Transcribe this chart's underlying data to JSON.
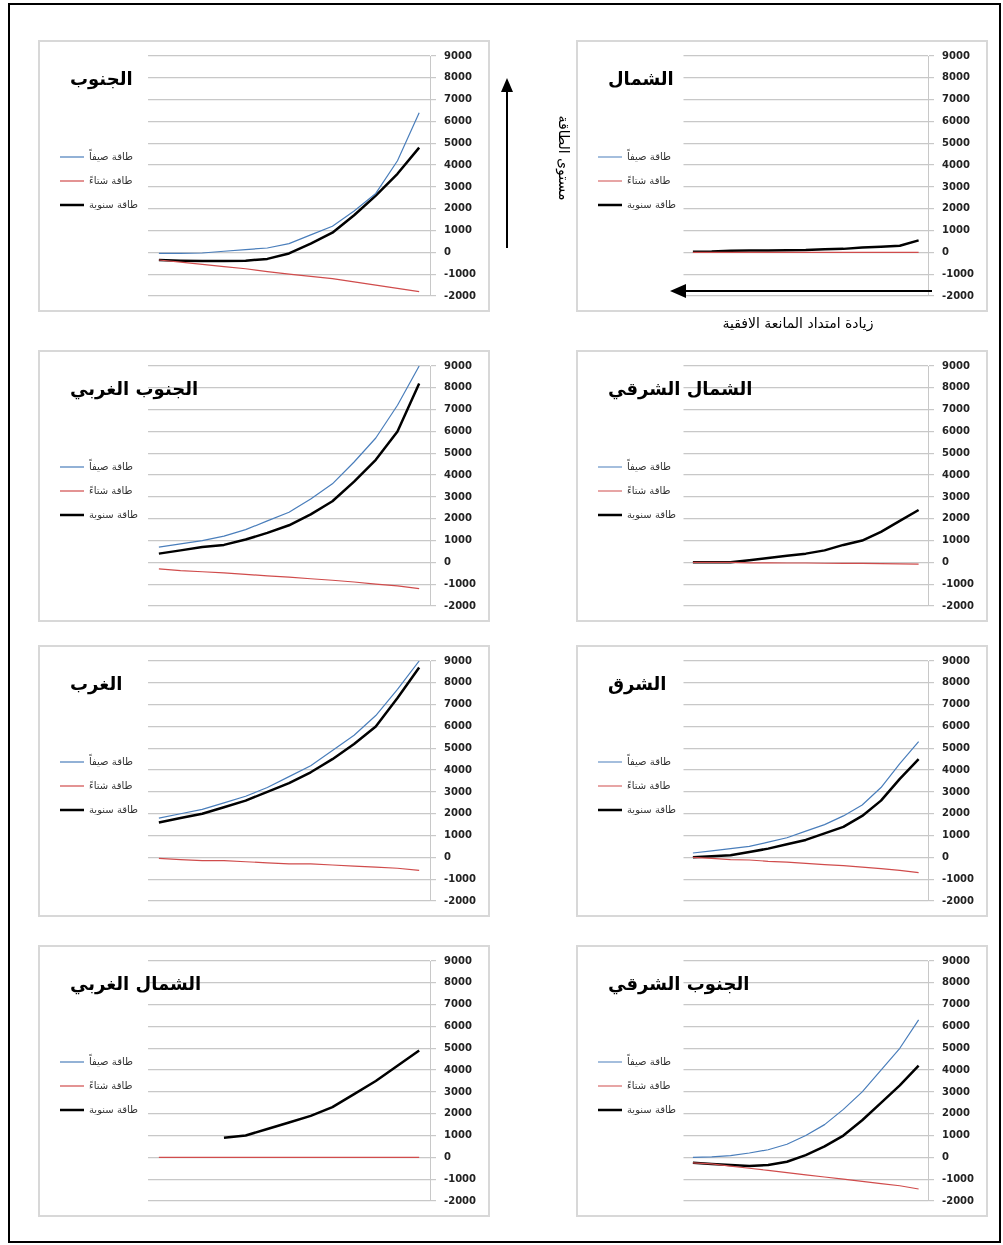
{
  "chart_data": [
    {
      "type": "line",
      "title": "الجنوب",
      "ylabel": "مستوى الطاقة",
      "legend": "left",
      "grid": "y",
      "marker": "none",
      "tick_labels": "y",
      "categories": [
        null,
        null,
        null,
        null,
        null,
        null,
        null,
        null,
        null,
        null,
        null,
        null,
        null
      ],
      "ylim": [
        -2000,
        9000
      ],
      "yticks": [
        -2000,
        -1000,
        0,
        1000,
        2000,
        3000,
        4000,
        5000,
        6000,
        7000,
        8000,
        9000
      ],
      "series": [
        {
          "name": "طاقة صيفاً",
          "color": "#4a7ebb",
          "values": [
            -50,
            -50,
            -30,
            50,
            130,
            200,
            400,
            800,
            1200,
            1900,
            2700,
            4200,
            6400
          ]
        },
        {
          "name": "طاقة شتاءً",
          "color": "#d04c4c",
          "values": [
            -350,
            -450,
            -550,
            -650,
            -750,
            -880,
            -1000,
            -1100,
            -1200,
            -1350,
            -1500,
            -1650,
            -1800
          ]
        },
        {
          "name": "طاقة سنوية",
          "color": "#000000",
          "values": [
            -350,
            -380,
            -400,
            -400,
            -380,
            -300,
            -50,
            400,
            900,
            1700,
            2600,
            3600,
            4800
          ]
        }
      ]
    },
    {
      "type": "line",
      "title": "الشمال",
      "xlabel": "زيادة امتداد المانعة الافقية",
      "legend": "left",
      "grid": "y",
      "marker": "none",
      "tick_labels": "y",
      "categories": [
        null,
        null,
        null,
        null,
        null,
        null,
        null,
        null,
        null,
        null,
        null,
        null,
        null
      ],
      "ylim": [
        -2000,
        9000
      ],
      "yticks": [
        -2000,
        -1000,
        0,
        1000,
        2000,
        3000,
        4000,
        5000,
        6000,
        7000,
        8000,
        9000
      ],
      "series": [
        {
          "name": "طاقة صيفاً",
          "color": "#4a7ebb",
          "values": [
            null,
            null,
            null,
            null,
            null,
            null,
            null,
            null,
            null,
            null,
            null,
            null,
            null
          ]
        },
        {
          "name": "طاقة شتاءً",
          "color": "#d04c4c",
          "values": [
            0,
            0,
            0,
            0,
            0,
            0,
            0,
            0,
            0,
            0,
            0,
            0,
            0
          ]
        },
        {
          "name": "طاقة سنوية",
          "color": "#000000",
          "values": [
            30,
            40,
            70,
            80,
            90,
            100,
            110,
            140,
            160,
            220,
            260,
            300,
            550
          ]
        }
      ]
    },
    {
      "type": "line",
      "title": "الجنوب الغربي",
      "legend": "left",
      "grid": "y",
      "marker": "none",
      "tick_labels": "y",
      "categories": [
        null,
        null,
        null,
        null,
        null,
        null,
        null,
        null,
        null,
        null,
        null,
        null,
        null
      ],
      "ylim": [
        -2000,
        9000
      ],
      "yticks": [
        -2000,
        -1000,
        0,
        1000,
        2000,
        3000,
        4000,
        5000,
        6000,
        7000,
        8000,
        9000
      ],
      "series": [
        {
          "name": "طاقة صيفاً",
          "color": "#4a7ebb",
          "values": [
            700,
            850,
            1000,
            1200,
            1500,
            1900,
            2300,
            2900,
            3600,
            4600,
            5700,
            7200,
            9000
          ]
        },
        {
          "name": "طاقة شتاءً",
          "color": "#d04c4c",
          "values": [
            -300,
            -380,
            -430,
            -480,
            -550,
            -620,
            -680,
            -750,
            -820,
            -900,
            -1000,
            -1080,
            -1200
          ]
        },
        {
          "name": "طاقة سنوية",
          "color": "#000000",
          "values": [
            400,
            550,
            700,
            800,
            1050,
            1350,
            1700,
            2200,
            2800,
            3700,
            4700,
            6000,
            8200
          ]
        }
      ]
    },
    {
      "type": "line",
      "title": "الشمال الشرقي",
      "legend": "left",
      "grid": "y",
      "marker": "none",
      "tick_labels": "y",
      "categories": [
        null,
        null,
        null,
        null,
        null,
        null,
        null,
        null,
        null,
        null,
        null,
        null,
        null
      ],
      "ylim": [
        -2000,
        9000
      ],
      "yticks": [
        -2000,
        -1000,
        0,
        1000,
        2000,
        3000,
        4000,
        5000,
        6000,
        7000,
        8000,
        9000
      ],
      "series": [
        {
          "name": "طاقة صيفاً",
          "color": "#4a7ebb",
          "values": [
            null,
            null,
            null,
            null,
            null,
            null,
            null,
            null,
            null,
            null,
            null,
            null,
            null
          ]
        },
        {
          "name": "طاقة شتاءً",
          "color": "#d04c4c",
          "values": [
            0,
            0,
            0,
            -20,
            -20,
            -30,
            -30,
            -40,
            -50,
            -50,
            -60,
            -70,
            -80
          ]
        },
        {
          "name": "طاقة سنوية",
          "color": "#000000",
          "values": [
            0,
            0,
            0,
            100,
            200,
            300,
            400,
            550,
            800,
            1000,
            1400,
            1900,
            2400
          ]
        }
      ]
    },
    {
      "type": "line",
      "title": "الغرب",
      "legend": "left",
      "grid": "y",
      "marker": "none",
      "tick_labels": "y",
      "categories": [
        null,
        null,
        null,
        null,
        null,
        null,
        null,
        null,
        null,
        null,
        null,
        null,
        null
      ],
      "ylim": [
        -2000,
        9000
      ],
      "yticks": [
        -2000,
        -1000,
        0,
        1000,
        2000,
        3000,
        4000,
        5000,
        6000,
        7000,
        8000,
        9000
      ],
      "series": [
        {
          "name": "طاقة صيفاً",
          "color": "#4a7ebb",
          "values": [
            1800,
            2000,
            2200,
            2500,
            2800,
            3200,
            3700,
            4200,
            4900,
            5600,
            6500,
            7700,
            9000
          ]
        },
        {
          "name": "طاقة شتاءً",
          "color": "#d04c4c",
          "values": [
            -50,
            -100,
            -150,
            -150,
            -200,
            -250,
            -300,
            -300,
            -350,
            -400,
            -450,
            -500,
            -600
          ]
        },
        {
          "name": "طاقة سنوية",
          "color": "#000000",
          "values": [
            1600,
            1800,
            2000,
            2300,
            2600,
            3000,
            3400,
            3900,
            4500,
            5200,
            6000,
            7300,
            8700
          ]
        }
      ]
    },
    {
      "type": "line",
      "title": "الشرق",
      "legend": "left",
      "grid": "y",
      "marker": "none",
      "tick_labels": "y",
      "categories": [
        null,
        null,
        null,
        null,
        null,
        null,
        null,
        null,
        null,
        null,
        null,
        null,
        null
      ],
      "ylim": [
        -2000,
        9000
      ],
      "yticks": [
        -2000,
        -1000,
        0,
        1000,
        2000,
        3000,
        4000,
        5000,
        6000,
        7000,
        8000,
        9000
      ],
      "series": [
        {
          "name": "طاقة صيفاً",
          "color": "#4a7ebb",
          "values": [
            200,
            300,
            400,
            500,
            700,
            900,
            1200,
            1500,
            1900,
            2400,
            3200,
            4300,
            5300
          ]
        },
        {
          "name": "طاقة شتاءً",
          "color": "#d04c4c",
          "values": [
            0,
            -50,
            -100,
            -120,
            -180,
            -220,
            -280,
            -330,
            -380,
            -450,
            -520,
            -600,
            -700
          ]
        },
        {
          "name": "طاقة سنوية",
          "color": "#000000",
          "values": [
            0,
            50,
            100,
            250,
            400,
            600,
            800,
            1100,
            1400,
            1900,
            2600,
            3600,
            4500
          ]
        }
      ]
    },
    {
      "type": "line",
      "title": "الشمال الغربي",
      "legend": "left",
      "grid": "y",
      "marker": "none",
      "tick_labels": "y",
      "categories": [
        null,
        null,
        null,
        null,
        null,
        null,
        null,
        null,
        null,
        null,
        null,
        null,
        null
      ],
      "ylim": [
        -2000,
        9000
      ],
      "yticks": [
        -2000,
        -1000,
        0,
        1000,
        2000,
        3000,
        4000,
        5000,
        6000,
        7000,
        8000,
        9000
      ],
      "series": [
        {
          "name": "طاقة صيفاً",
          "color": "#4a7ebb",
          "values": [
            null,
            null,
            null,
            null,
            null,
            null,
            null,
            null,
            null,
            null,
            null,
            null,
            null
          ]
        },
        {
          "name": "طاقة شتاءً",
          "color": "#d04c4c",
          "values": [
            0,
            0,
            0,
            0,
            0,
            0,
            0,
            0,
            0,
            0,
            0,
            0,
            0
          ]
        },
        {
          "name": "طاقة سنوية",
          "color": "#000000",
          "values": [
            null,
            null,
            null,
            900,
            1000,
            1300,
            1600,
            1900,
            2300,
            2900,
            3500,
            4200,
            4900
          ]
        }
      ]
    },
    {
      "type": "line",
      "title": "الجنوب الشرقي",
      "legend": "left",
      "grid": "y",
      "marker": "none",
      "tick_labels": "y",
      "categories": [
        null,
        null,
        null,
        null,
        null,
        null,
        null,
        null,
        null,
        null,
        null,
        null,
        null
      ],
      "ylim": [
        -2000,
        9000
      ],
      "yticks": [
        -2000,
        -1000,
        0,
        1000,
        2000,
        3000,
        4000,
        5000,
        6000,
        7000,
        8000,
        9000
      ],
      "series": [
        {
          "name": "طاقة صيفاً",
          "color": "#4a7ebb",
          "values": [
            0,
            20,
            80,
            200,
            350,
            600,
            1000,
            1500,
            2200,
            3000,
            4000,
            5000,
            6300
          ]
        },
        {
          "name": "طاقة شتاءً",
          "color": "#d04c4c",
          "values": [
            -250,
            -300,
            -400,
            -500,
            -600,
            -700,
            -800,
            -900,
            -1000,
            -1100,
            -1200,
            -1300,
            -1450
          ]
        },
        {
          "name": "طاقة سنوية",
          "color": "#000000",
          "values": [
            -250,
            -300,
            -350,
            -400,
            -350,
            -200,
            100,
            500,
            1000,
            1700,
            2500,
            3300,
            4200
          ]
        }
      ]
    }
  ]
}
